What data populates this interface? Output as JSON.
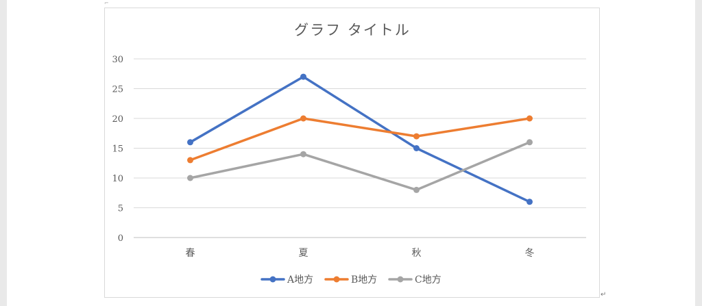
{
  "chart_data": {
    "type": "line",
    "title": "グラフ タイトル",
    "categories": [
      "春",
      "夏",
      "秋",
      "冬"
    ],
    "ylim": [
      0,
      30
    ],
    "yticks": [
      0,
      5,
      10,
      15,
      20,
      25,
      30
    ],
    "grid": true,
    "legend_position": "bottom",
    "series": [
      {
        "name": "A地方",
        "values": [
          16,
          27,
          15,
          6
        ],
        "color": "#4472c4"
      },
      {
        "name": "B地方",
        "values": [
          13,
          20,
          17,
          20
        ],
        "color": "#ed7d31"
      },
      {
        "name": "C地方",
        "values": [
          10,
          14,
          8,
          16
        ],
        "color": "#a5a5a5"
      }
    ]
  },
  "editor": {
    "paragraph_mark": "↵"
  }
}
